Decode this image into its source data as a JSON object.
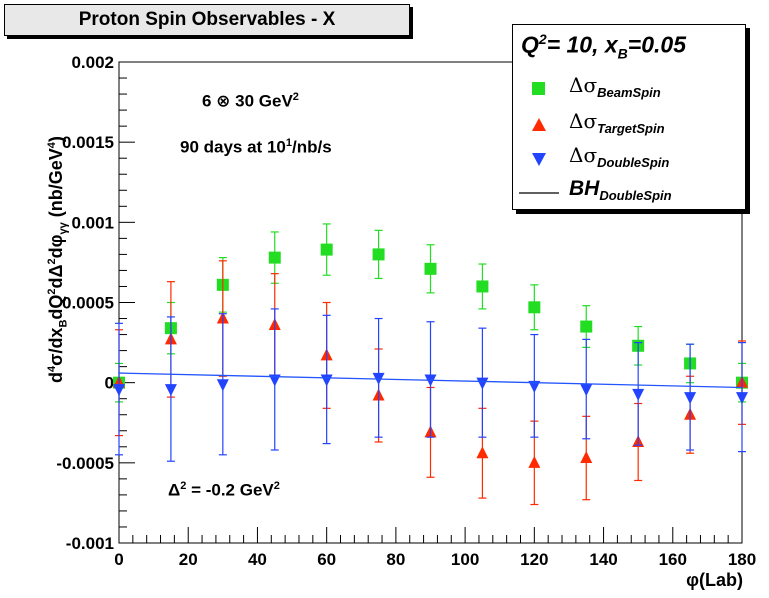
{
  "title": "Proton Spin Observables - X",
  "legend": {
    "header_prefix": "Q",
    "header_q_sup": "2",
    "header_mid": "= 10, x",
    "header_x_sub": "B",
    "header_suffix": "=0.05",
    "items": [
      {
        "symbol": "Δσ",
        "sub": "BeamSpin",
        "marker": "square",
        "color": "#22dd22"
      },
      {
        "symbol": "Δσ",
        "sub": "TargetSpin",
        "marker": "triangle-up",
        "color": "#ff2a00"
      },
      {
        "symbol": "Δσ",
        "sub": "DoubleSpin",
        "marker": "triangle-down",
        "color": "#2244ff"
      },
      {
        "symbol": "BH",
        "sub": "DoubleSpin",
        "marker": "line",
        "color": "#000000"
      }
    ]
  },
  "annotations": {
    "energy_main": "6 ⊗ 30 GeV",
    "energy_sup": "2",
    "lumi_main": "90 days at 10",
    "lumi_sup": "1",
    "lumi_tail": "/nb/s",
    "delta_main": "Δ",
    "delta_sup": "2",
    "delta_tail": " = -0.2 GeV",
    "delta_tail_sup": "2"
  },
  "axes": {
    "ylabel_parts": [
      "d",
      "4",
      "σ/dx",
      "B",
      "dQ",
      "2",
      "dΔ",
      "2",
      "dφ",
      "γγ",
      " (nb/GeV",
      "4",
      ")"
    ],
    "xlabel": "φ(Lab)"
  },
  "chart_data": {
    "type": "scatter",
    "title": "Proton Spin Observables - X",
    "xlabel": "φ(Lab)",
    "ylabel": "d⁴σ/dx_B dQ² dΔ² dφ_γγ (nb/GeV⁴)",
    "xlim": [
      0,
      180
    ],
    "ylim": [
      -0.001,
      0.002
    ],
    "x_ticks": [
      0,
      20,
      40,
      60,
      80,
      100,
      120,
      140,
      160,
      180
    ],
    "x_tick_labels": [
      "0",
      "20",
      "40",
      "60",
      "80",
      "100",
      "120",
      "140",
      "160",
      "180"
    ],
    "y_ticks": [
      -0.001,
      -0.0005,
      0,
      0.0005,
      0.001,
      0.0015,
      0.002
    ],
    "y_tick_labels": [
      "-0.001",
      "-0.0005",
      "0",
      "0.0005",
      "0.001",
      "0.0015",
      "0.002"
    ],
    "grid": false,
    "legend_position": "top-right",
    "x": [
      0,
      15,
      30,
      45,
      60,
      75,
      90,
      105,
      120,
      135,
      150,
      165,
      180
    ],
    "series": [
      {
        "name": "ΔσBeamSpin",
        "marker": "square",
        "color": "#22dd22",
        "values": [
          0.0,
          0.00034,
          0.00061,
          0.00078,
          0.00083,
          0.0008,
          0.00071,
          0.0006,
          0.00047,
          0.00035,
          0.00023,
          0.00012,
          0.0
        ],
        "errors": [
          0.00012,
          0.00016,
          0.00017,
          0.00016,
          0.00016,
          0.00015,
          0.00015,
          0.00014,
          0.00014,
          0.00013,
          0.00012,
          0.00012,
          0.00012
        ]
      },
      {
        "name": "ΔσTargetSpin",
        "marker": "triangle-up",
        "color": "#ff2a00",
        "values": [
          0.0,
          0.00027,
          0.0004,
          0.00036,
          0.00017,
          -8e-05,
          -0.00031,
          -0.00044,
          -0.0005,
          -0.00047,
          -0.00037,
          -0.0002,
          0.0
        ],
        "errors": [
          0.00033,
          0.00036,
          0.00036,
          0.00032,
          0.00033,
          0.00029,
          0.00028,
          0.00028,
          0.00026,
          0.00026,
          0.00024,
          0.00024,
          0.00026
        ]
      },
      {
        "name": "ΔσDoubleSpin",
        "marker": "triangle-down",
        "color": "#2244ff",
        "values": [
          -4e-05,
          -4e-05,
          -1e-05,
          2e-05,
          2e-05,
          3e-05,
          2e-05,
          0.0,
          -2e-05,
          -4e-05,
          -7e-05,
          -9e-05,
          -9e-05
        ],
        "errors": [
          0.00041,
          0.00045,
          0.00044,
          0.00044,
          0.0004,
          0.00037,
          0.00036,
          0.00034,
          0.00032,
          0.00031,
          0.00032,
          0.00033,
          0.00034
        ]
      },
      {
        "name": "BHDoubleSpin",
        "type": "line",
        "color": "#2255ff",
        "x": [
          0,
          180
        ],
        "values": [
          6e-05,
          -3e-05
        ]
      }
    ]
  }
}
